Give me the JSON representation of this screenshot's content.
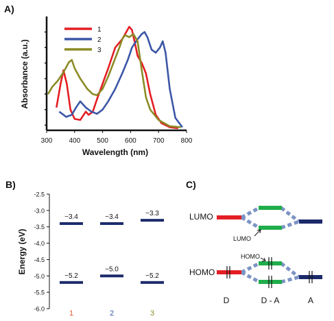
{
  "panels": {
    "a": {
      "label": "A)"
    },
    "b": {
      "label": "B)"
    },
    "c": {
      "label": "C)"
    }
  },
  "chart_data": [
    {
      "type": "line",
      "ylabel": "Absorbance (a.u.)",
      "xlabel": "Wavelength (nm)",
      "xlim": [
        300,
        800
      ],
      "xticks": [
        300,
        400,
        500,
        600,
        700,
        800
      ],
      "ylim": [
        0,
        1.1
      ],
      "yticks_unlabeled": [
        0.05,
        0.2,
        0.35,
        0.5,
        0.65,
        0.8,
        0.95
      ],
      "legend": {
        "position": "top-left"
      },
      "series": [
        {
          "name": "1",
          "color": "#e31e24",
          "points": [
            [
              335,
              0.22
            ],
            [
              350,
              0.45
            ],
            [
              360,
              0.58
            ],
            [
              372,
              0.45
            ],
            [
              385,
              0.2
            ],
            [
              400,
              0.11
            ],
            [
              420,
              0.1
            ],
            [
              440,
              0.18
            ],
            [
              450,
              0.15
            ],
            [
              465,
              0.18
            ],
            [
              480,
              0.3
            ],
            [
              500,
              0.45
            ],
            [
              520,
              0.6
            ],
            [
              545,
              0.8
            ],
            [
              570,
              0.88
            ],
            [
              595,
              1.0
            ],
            [
              605,
              0.97
            ],
            [
              615,
              0.85
            ],
            [
              625,
              0.72
            ],
            [
              640,
              0.65
            ],
            [
              655,
              0.55
            ],
            [
              670,
              0.35
            ],
            [
              690,
              0.15
            ],
            [
              710,
              0.07
            ],
            [
              740,
              0.03
            ],
            [
              770,
              0.02
            ]
          ]
        },
        {
          "name": "2",
          "color": "#3b56a6",
          "points": [
            [
              345,
              0.18
            ],
            [
              370,
              0.13
            ],
            [
              390,
              0.15
            ],
            [
              405,
              0.22
            ],
            [
              420,
              0.28
            ],
            [
              440,
              0.22
            ],
            [
              460,
              0.18
            ],
            [
              480,
              0.16
            ],
            [
              500,
              0.2
            ],
            [
              520,
              0.28
            ],
            [
              545,
              0.4
            ],
            [
              570,
              0.55
            ],
            [
              590,
              0.68
            ],
            [
              605,
              0.8
            ],
            [
              625,
              0.88
            ],
            [
              640,
              0.93
            ],
            [
              650,
              0.95
            ],
            [
              660,
              0.9
            ],
            [
              675,
              0.78
            ],
            [
              690,
              0.75
            ],
            [
              705,
              0.8
            ],
            [
              715,
              0.86
            ],
            [
              725,
              0.75
            ],
            [
              740,
              0.4
            ],
            [
              760,
              0.12
            ],
            [
              785,
              0.03
            ]
          ]
        },
        {
          "name": "3",
          "color": "#8b8b26",
          "points": [
            [
              305,
              0.35
            ],
            [
              320,
              0.42
            ],
            [
              340,
              0.48
            ],
            [
              360,
              0.56
            ],
            [
              380,
              0.66
            ],
            [
              390,
              0.68
            ],
            [
              400,
              0.6
            ],
            [
              420,
              0.5
            ],
            [
              445,
              0.4
            ],
            [
              465,
              0.35
            ],
            [
              480,
              0.34
            ],
            [
              500,
              0.4
            ],
            [
              520,
              0.52
            ],
            [
              540,
              0.66
            ],
            [
              560,
              0.8
            ],
            [
              570,
              0.88
            ],
            [
              580,
              0.92
            ],
            [
              595,
              0.9
            ],
            [
              610,
              0.93
            ],
            [
              625,
              0.86
            ],
            [
              640,
              0.58
            ],
            [
              655,
              0.32
            ],
            [
              670,
              0.2
            ],
            [
              700,
              0.1
            ],
            [
              740,
              0.04
            ],
            [
              780,
              0.03
            ]
          ]
        }
      ]
    },
    {
      "type": "bar",
      "ylabel": "Energy (eV)",
      "ylim": [
        -6.0,
        -2.5
      ],
      "yticks": [
        "-2.5",
        "-3.0",
        "-3.5",
        "-4.0",
        "-4.5",
        "-5.0",
        "-5.5",
        "-6.0"
      ],
      "categories": [
        {
          "label": "1",
          "color": "#e05a2b"
        },
        {
          "label": "2",
          "color": "#3b56a6"
        },
        {
          "label": "3",
          "color": "#8b8b26"
        }
      ],
      "lumo": [
        -3.4,
        -3.4,
        -3.3
      ],
      "homo": [
        -5.2,
        -5.0,
        -5.2
      ],
      "lumo_labels": [
        "−3.4",
        "−3.4",
        "−3.3"
      ],
      "homo_labels": [
        "−5.2",
        "−5.0",
        "−5.2"
      ],
      "level_color": "#1c2a6b"
    }
  ],
  "diagram": {
    "lumo_label": "LUMO",
    "homo_label": "HOMO",
    "lumo_callout": "LUMO",
    "homo_callout": "HOMO",
    "d_label": "D",
    "da_label": "D - A",
    "a_label": "A",
    "colors": {
      "donor": "#e31e24",
      "hybrid": "#1fae4b",
      "acceptor": "#1c2a6b",
      "dash": "#7c93c4"
    }
  }
}
